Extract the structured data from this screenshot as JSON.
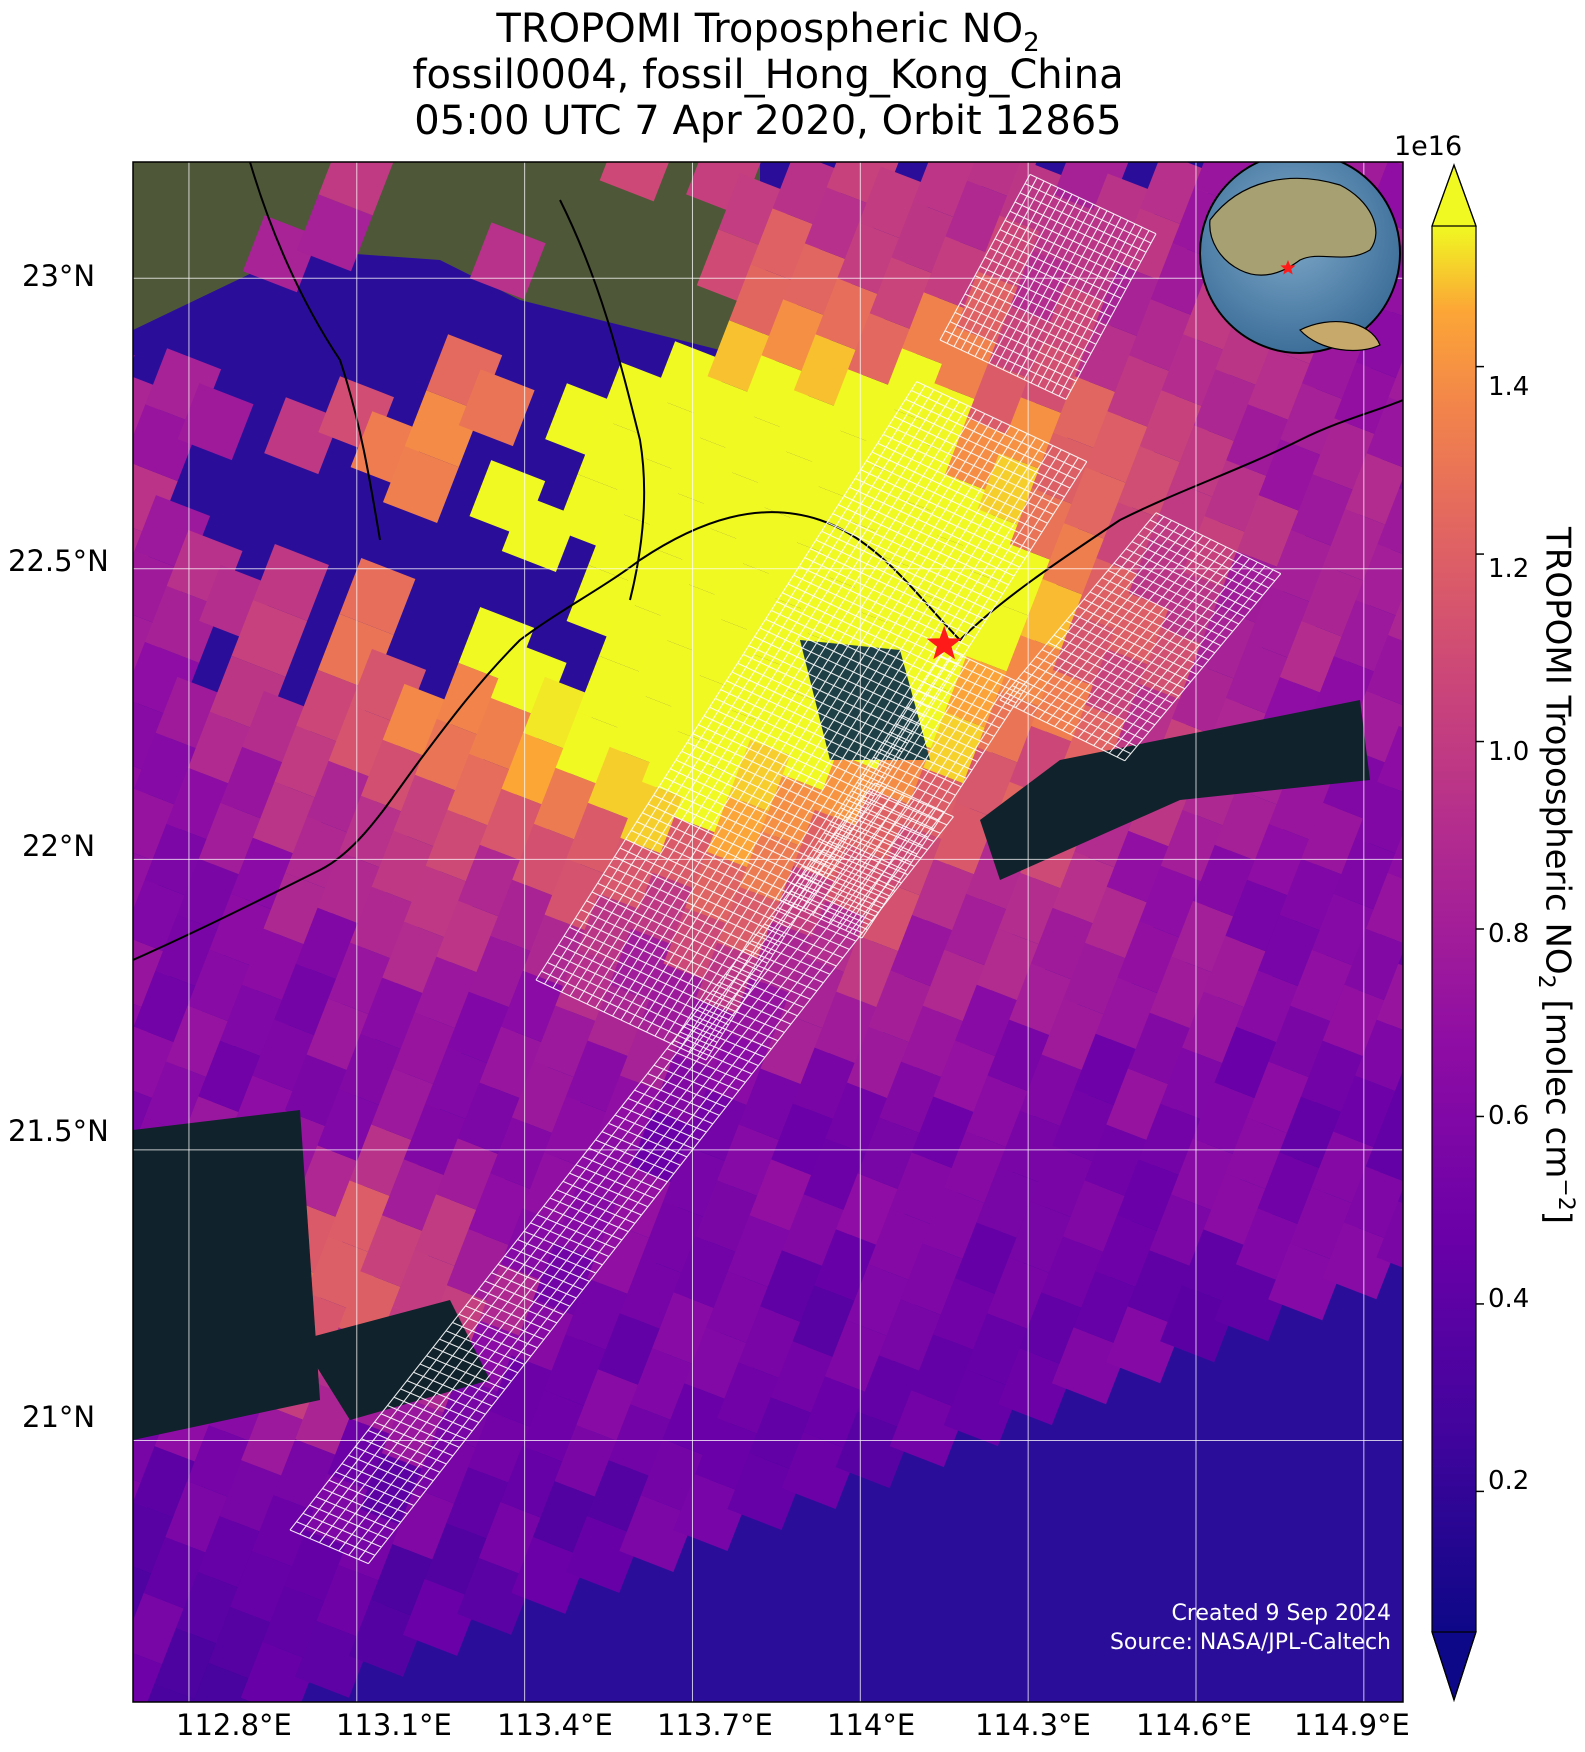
{
  "title": {
    "line1_main": "TROPOMI Tropospheric NO",
    "line1_sub": "2",
    "line2": "fossil0004, fossil_Hong_Kong_China",
    "line3": "05:00 UTC 7 Apr 2020, Orbit 12865"
  },
  "axes": {
    "lat_labels": [
      "23°N",
      "22.5°N",
      "22°N",
      "21.5°N",
      "21°N"
    ],
    "lon_labels": [
      "112.8°E",
      "113.1°E",
      "113.4°E",
      "113.7°E",
      "114°E",
      "114.3°E",
      "114.6°E",
      "114.9°E"
    ]
  },
  "colorbar": {
    "exponent": "1e16",
    "ticks": [
      "0.2",
      "0.4",
      "0.6",
      "0.8",
      "1.0",
      "1.2",
      "1.4"
    ],
    "label_main": "TROPOMI Tropospheric NO",
    "label_sub": "2",
    "label_units": " [molec cm",
    "label_exp": "−2",
    "label_close": "]",
    "colormap": "plasma",
    "range": [
      0.05,
      1.55
    ],
    "extend": "both"
  },
  "site": {
    "name": "fossil_Hong_Kong_China",
    "marker": "red-star",
    "lon": 114.15,
    "lat": 22.37
  },
  "credits": {
    "created": "Created 9 Sep 2024",
    "source": "Source: NASA/JPL-Caltech"
  },
  "colors": {
    "marker": "#ff1a1a",
    "grid": "#ffffff",
    "ocean_dark": "#10222b",
    "land": "#4f5a3a"
  }
}
